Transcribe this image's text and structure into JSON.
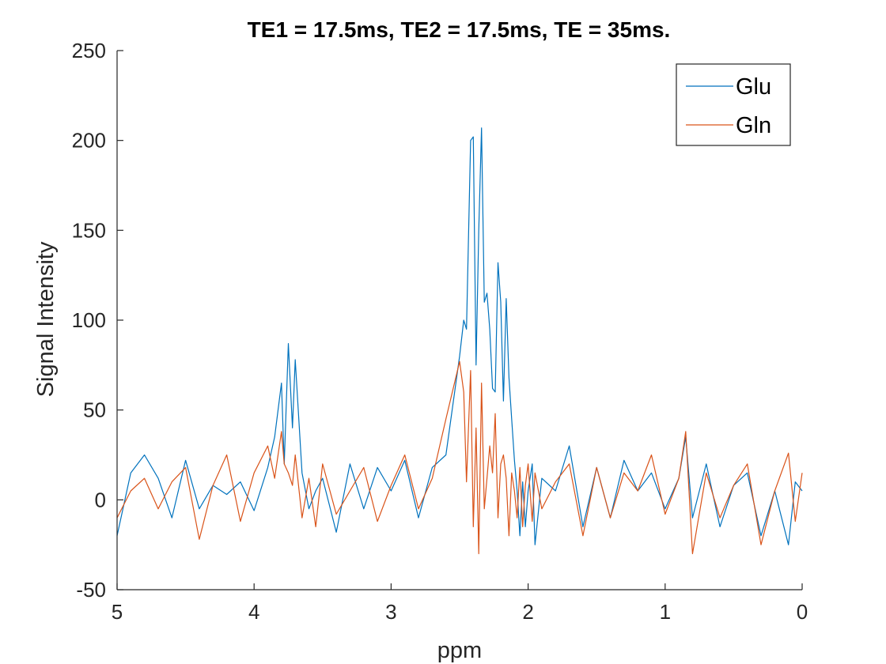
{
  "chart_data": {
    "type": "line",
    "title": "TE1 = 17.5ms, TE2 = 17.5ms, TE = 35ms.",
    "xlabel": "ppm",
    "ylabel": "Signal Intensity",
    "xlim": [
      5,
      0
    ],
    "x_reversed": true,
    "ylim": [
      -50,
      250
    ],
    "xticks": [
      5,
      4,
      3,
      2,
      1,
      0
    ],
    "xtick_labels": [
      "5",
      "4",
      "3",
      "2",
      "1",
      "0"
    ],
    "yticks": [
      -50,
      0,
      50,
      100,
      150,
      200,
      250
    ],
    "ytick_labels": [
      "-50",
      "0",
      "50",
      "100",
      "150",
      "200",
      "250"
    ],
    "grid": false,
    "legend_position": "top-right",
    "x": [
      5.0,
      4.9,
      4.8,
      4.7,
      4.6,
      4.5,
      4.4,
      4.3,
      4.2,
      4.1,
      4.0,
      3.9,
      3.85,
      3.8,
      3.78,
      3.75,
      3.72,
      3.7,
      3.65,
      3.6,
      3.55,
      3.5,
      3.4,
      3.3,
      3.2,
      3.1,
      3.0,
      2.9,
      2.8,
      2.7,
      2.6,
      2.5,
      2.47,
      2.45,
      2.42,
      2.4,
      2.38,
      2.36,
      2.34,
      2.32,
      2.3,
      2.28,
      2.26,
      2.24,
      2.22,
      2.2,
      2.18,
      2.16,
      2.14,
      2.12,
      2.1,
      2.08,
      2.06,
      2.04,
      2.02,
      2.0,
      1.97,
      1.95,
      1.9,
      1.8,
      1.7,
      1.6,
      1.5,
      1.4,
      1.3,
      1.2,
      1.1,
      1.0,
      0.9,
      0.85,
      0.8,
      0.7,
      0.6,
      0.5,
      0.4,
      0.3,
      0.2,
      0.1,
      0.05,
      0.0
    ],
    "series": [
      {
        "name": "Glu",
        "color": "#0072bd",
        "values": [
          -20,
          15,
          25,
          12,
          -10,
          22,
          -5,
          8,
          3,
          10,
          -6,
          18,
          35,
          65,
          20,
          87,
          40,
          78,
          15,
          -5,
          5,
          12,
          -18,
          20,
          -5,
          18,
          5,
          22,
          -10,
          18,
          25,
          80,
          100,
          95,
          200,
          202,
          75,
          150,
          207,
          110,
          115,
          95,
          62,
          60,
          132,
          110,
          55,
          112,
          68,
          45,
          22,
          5,
          -20,
          10,
          -15,
          5,
          20,
          -25,
          12,
          5,
          30,
          -15,
          18,
          -10,
          22,
          5,
          15,
          -5,
          12,
          35,
          -10,
          20,
          -15,
          8,
          15,
          -20,
          5,
          -25,
          10,
          5
        ]
      },
      {
        "name": "Gln",
        "color": "#d95319",
        "values": [
          -10,
          5,
          12,
          -5,
          10,
          18,
          -22,
          8,
          25,
          -12,
          15,
          30,
          12,
          38,
          20,
          15,
          8,
          25,
          -10,
          12,
          -15,
          20,
          -8,
          5,
          18,
          -12,
          8,
          25,
          -5,
          12,
          45,
          77,
          60,
          10,
          72,
          -15,
          40,
          -30,
          65,
          -5,
          12,
          30,
          15,
          48,
          -10,
          20,
          25,
          12,
          -20,
          15,
          5,
          -10,
          18,
          -15,
          8,
          20,
          -12,
          15,
          -5,
          10,
          20,
          -20,
          18,
          -10,
          15,
          5,
          25,
          -8,
          12,
          38,
          -30,
          15,
          -10,
          8,
          20,
          -25,
          5,
          26,
          -12,
          15
        ]
      }
    ]
  }
}
